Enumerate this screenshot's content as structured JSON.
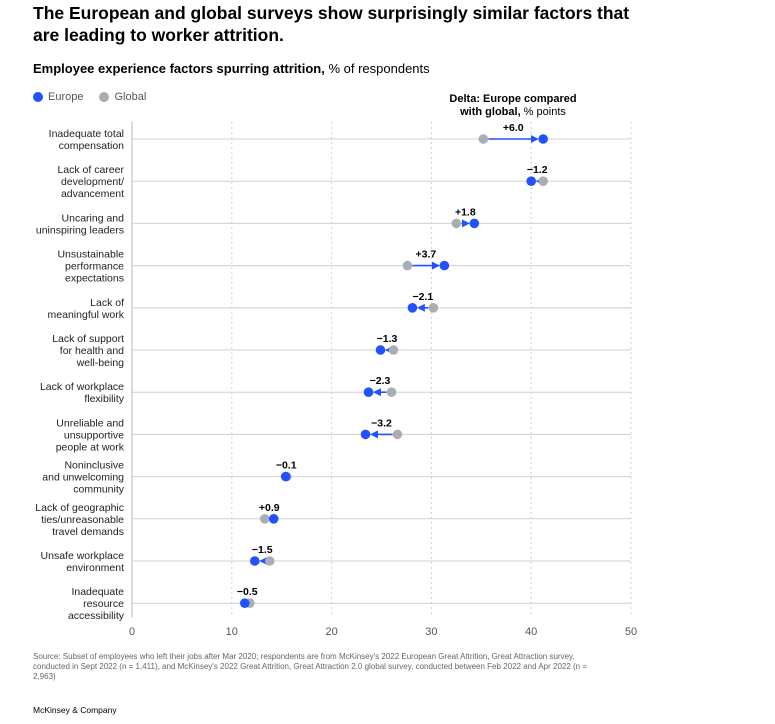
{
  "headline": "The European and global surveys show surprisingly similar factors that are leading to worker attrition.",
  "subtitle_bold": "Employee experience factors spurring attrition,",
  "subtitle_rest": " % of respondents",
  "legend": [
    {
      "label": "Europe",
      "color": "#2251ff"
    },
    {
      "label": "Global",
      "color": "#a9aeb4"
    }
  ],
  "delta_header": {
    "bold": "Delta: Europe compared with global,",
    "rest": " % points"
  },
  "colors": {
    "europe": "#2251ff",
    "global": "#a9aeb4",
    "axis": "#b5b5b5",
    "grid": "#d0d0d0"
  },
  "chart_data": {
    "type": "scatter",
    "subtype": "dumbbell",
    "categories": [
      [
        "Inadequate total",
        "compensation"
      ],
      [
        "Lack of career",
        "development/",
        "advancement"
      ],
      [
        "Uncaring and",
        "uninspiring leaders"
      ],
      [
        "Unsustainable",
        "performance",
        "expectations"
      ],
      [
        "Lack of",
        "meaningful work"
      ],
      [
        "Lack of support",
        "for health and",
        "well-being"
      ],
      [
        "Lack of workplace",
        "flexibility"
      ],
      [
        "Unreliable and",
        "unsupportive",
        "people at work"
      ],
      [
        "Noninclusive",
        "and unwelcoming",
        "community"
      ],
      [
        "Lack of geographic",
        "ties/unreasonable",
        "travel demands"
      ],
      [
        "Unsafe workplace",
        "environment"
      ],
      [
        "Inadequate",
        "resource",
        "accessibility"
      ]
    ],
    "series": [
      {
        "name": "Europe",
        "values": [
          41.2,
          40.0,
          34.3,
          31.3,
          28.1,
          24.9,
          23.7,
          23.4,
          15.4,
          14.2,
          12.3,
          11.3
        ]
      },
      {
        "name": "Global",
        "values": [
          35.2,
          41.2,
          32.5,
          27.6,
          30.2,
          26.2,
          26.0,
          26.6,
          15.5,
          13.3,
          13.8,
          11.8
        ]
      }
    ],
    "delta_labels": [
      "+6.0",
      "−1.2",
      "+1.8",
      "+3.7",
      "−2.1",
      "−1.3",
      "−2.3",
      "−3.2",
      "−0.1",
      "+0.9",
      "−1.5",
      "−0.5"
    ],
    "xlim": [
      0,
      50
    ],
    "xticks": [
      "0",
      "10",
      "20",
      "30",
      "40",
      "50"
    ],
    "grid": "vertical dashed"
  },
  "source": "Source: Subset of employees who left their jobs after Mar 2020; respondents are from McKinsey's 2022 European Great Attrition, Great Attraction survey, conducted in Sept 2022 (n = 1,411), and McKinsey's 2022 Great Attrition, Great Attraction 2.0 global survey, conducted between Feb 2022 and Apr 2022 (n = 2,963)",
  "brand": "McKinsey & Company"
}
